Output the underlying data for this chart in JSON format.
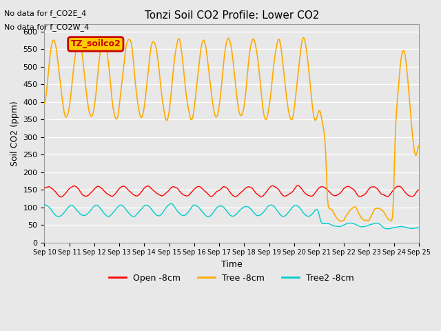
{
  "title": "Tonzi Soil CO2 Profile: Lower CO2",
  "xlabel": "Time",
  "ylabel": "Soil CO2 (ppm)",
  "text_lines": [
    "No data for f_CO2E_4",
    "No data for f_CO2W_4"
  ],
  "legend_box_label": "TZ_soilco2",
  "ylim": [
    0,
    620
  ],
  "yticks": [
    0,
    50,
    100,
    150,
    200,
    250,
    300,
    350,
    400,
    450,
    500,
    550,
    600
  ],
  "start_day": 10,
  "end_day": 25,
  "xtick_labels": [
    "Sep 10",
    "Sep 11",
    "Sep 12",
    "Sep 13",
    "Sep 14",
    "Sep 15",
    "Sep 16",
    "Sep 17",
    "Sep 18",
    "Sep 19",
    "Sep 20",
    "Sep 21",
    "Sep 22",
    "Sep 23",
    "Sep 24",
    "Sep 25"
  ],
  "series": {
    "Open -8cm": {
      "color": "#ff0000",
      "base": 145,
      "amplitude": 15,
      "period": 1.0,
      "phase": 0.0,
      "noise": 8
    },
    "Tree -8cm": {
      "color": "#ffaa00",
      "base": 430,
      "amplitude": 160,
      "period": 1.0,
      "phase": 0.3,
      "noise": 10
    },
    "Tree2 -8cm": {
      "color": "#00cccc",
      "base": 90,
      "amplitude": 20,
      "period": 1.0,
      "phase": 0.5,
      "noise": 8
    }
  },
  "background_color": "#e8e8e8",
  "plot_bg_color": "#e8e8e8",
  "grid_color": "#ffffff",
  "legend_box_color": "#ffcc00",
  "legend_box_edge": "#cc0000"
}
